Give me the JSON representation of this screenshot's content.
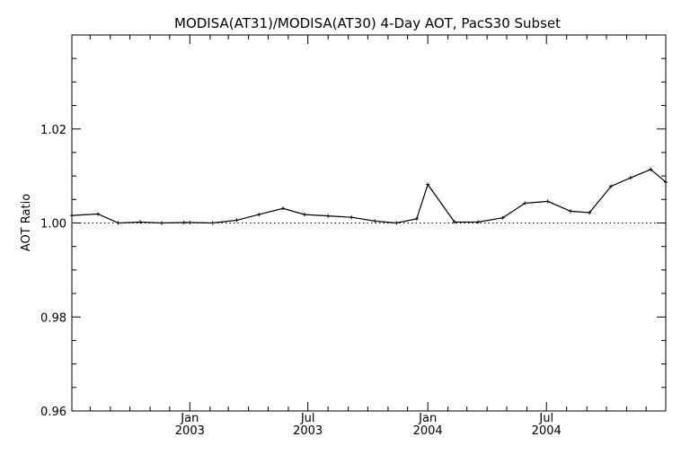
{
  "chart_data": {
    "type": "line",
    "title": "MODISA(AT31)/MODISA(AT30) 4-Day AOT, PacS30 Subset",
    "xlabel": "",
    "ylabel": "AOT Ratio",
    "xlim": [
      "2002-07-04",
      "2004-12-31"
    ],
    "ylim": [
      0.96,
      1.04
    ],
    "y_ticks": [
      {
        "value": 0.96,
        "label": "0.96"
      },
      {
        "value": 0.98,
        "label": "0.98"
      },
      {
        "value": 1.0,
        "label": "1.00"
      },
      {
        "value": 1.02,
        "label": "1.02"
      }
    ],
    "x_ticks": [
      {
        "date": "2003-01-01",
        "label": "Jan",
        "year": "2003"
      },
      {
        "date": "2003-07-01",
        "label": "Jul",
        "year": "2003"
      },
      {
        "date": "2004-01-01",
        "label": "Jan",
        "year": "2004"
      },
      {
        "date": "2004-07-01",
        "label": "Jul",
        "year": "2004"
      }
    ],
    "reference_line": {
      "y": 1.0,
      "style": "dotted"
    },
    "grid": false,
    "series": [
      {
        "color": "#000000",
        "points": [
          {
            "x": "2002-07-04",
            "y": 1.0016
          },
          {
            "x": "2002-08-13",
            "y": 1.0019
          },
          {
            "x": "2002-09-13",
            "y": 1.0
          },
          {
            "x": "2002-10-17",
            "y": 1.0002
          },
          {
            "x": "2002-11-19",
            "y": 1.0
          },
          {
            "x": "2002-12-23",
            "y": 1.0001
          },
          {
            "x": "2003-01-01",
            "y": 1.0001
          },
          {
            "x": "2003-02-05",
            "y": 1.0
          },
          {
            "x": "2003-03-14",
            "y": 1.0006
          },
          {
            "x": "2003-04-17",
            "y": 1.0018
          },
          {
            "x": "2003-05-24",
            "y": 1.0031
          },
          {
            "x": "2003-06-26",
            "y": 1.0018
          },
          {
            "x": "2003-08-01",
            "y": 1.0015
          },
          {
            "x": "2003-09-06",
            "y": 1.0012
          },
          {
            "x": "2003-10-12",
            "y": 1.0004
          },
          {
            "x": "2003-11-14",
            "y": 1.0
          },
          {
            "x": "2003-12-15",
            "y": 1.0009
          },
          {
            "x": "2004-01-01",
            "y": 1.0082
          },
          {
            "x": "2004-02-11",
            "y": 1.0002
          },
          {
            "x": "2004-03-18",
            "y": 1.0002
          },
          {
            "x": "2004-04-25",
            "y": 1.0011
          },
          {
            "x": "2004-05-29",
            "y": 1.0042
          },
          {
            "x": "2004-07-03",
            "y": 1.0046
          },
          {
            "x": "2004-08-07",
            "y": 1.0025
          },
          {
            "x": "2004-09-05",
            "y": 1.0022
          },
          {
            "x": "2004-10-08",
            "y": 1.0078
          },
          {
            "x": "2004-11-07",
            "y": 1.0096
          },
          {
            "x": "2004-12-08",
            "y": 1.0114
          },
          {
            "x": "2004-12-31",
            "y": 1.0087
          }
        ]
      }
    ]
  }
}
